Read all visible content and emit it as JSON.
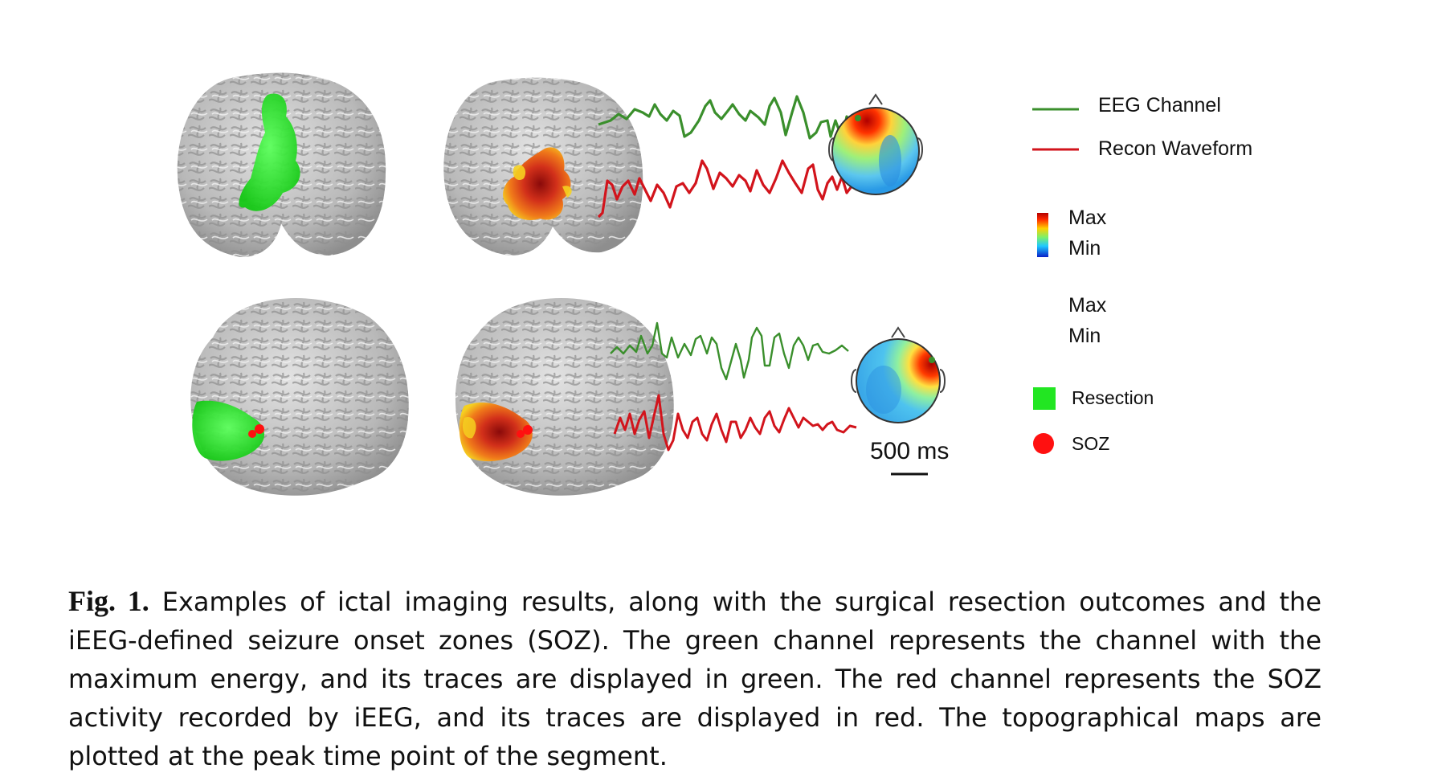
{
  "legend": {
    "eeg_channel": "EEG Channel",
    "recon_waveform": "Recon Waveform",
    "colorbar_max": "Max",
    "colorbar_min": "Min",
    "colorbar2_max": "Max",
    "colorbar2_min": "Min",
    "resection": "Resection",
    "soz": "SOZ"
  },
  "scale_bar": {
    "label": "500 ms"
  },
  "caption": {
    "label": "Fig. 1.",
    "text": "Examples of ictal imaging results, along with the surgical resection outcomes and the iEEG-defined seizure onset zones (SOZ). The green channel represents the channel with the maximum energy, and its traces are displayed in green. The red channel represents the SOZ activity recorded by iEEG, and its traces are displayed in red. The topographical maps are plotted at the peak time point of the segment."
  },
  "colors": {
    "eeg_trace": "#3a8f2c",
    "recon_trace": "#d2141c",
    "resection": "#22e622",
    "soz": "#ff1010",
    "brain": "#bdbdbd"
  }
}
